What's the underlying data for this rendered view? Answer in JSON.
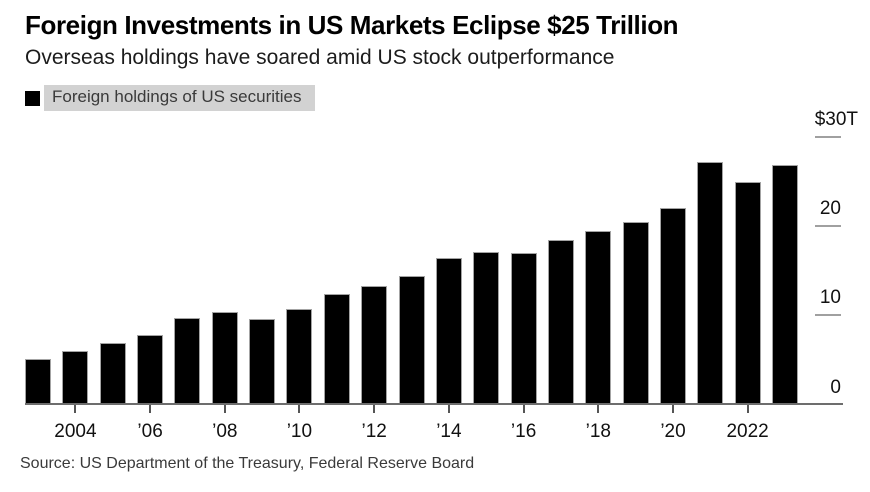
{
  "header": {
    "title": "Foreign Investments in US Markets Eclipse $25 Trillion",
    "subtitle": "Overseas holdings have soared amid US stock outperformance"
  },
  "legend": {
    "swatch_color": "#000000",
    "label": "Foreign holdings of US securities"
  },
  "chart_data": {
    "type": "bar",
    "title": "Foreign Investments in US Markets Eclipse $25 Trillion",
    "series_name": "Foreign holdings of US securities",
    "unit": "USD trillions",
    "categories": [
      "2003",
      "2004",
      "2005",
      "2006",
      "2007",
      "2008",
      "2009",
      "2010",
      "2011",
      "2012",
      "2013",
      "2014",
      "2015",
      "2016",
      "2017",
      "2018",
      "2019",
      "2020",
      "2021",
      "2022",
      "2023"
    ],
    "values": [
      5.0,
      6.0,
      6.9,
      7.8,
      9.7,
      10.3,
      9.6,
      10.7,
      12.4,
      13.3,
      14.4,
      16.4,
      17.1,
      17.0,
      18.4,
      19.4,
      20.5,
      22.0,
      27.2,
      24.9,
      26.9
    ],
    "ylim": [
      0,
      30
    ],
    "yticks": [
      0,
      10,
      20,
      30
    ],
    "ytick_labels": [
      "0",
      "10",
      "20",
      "$30T"
    ],
    "xtick_category_indexes": [
      1,
      3,
      5,
      7,
      9,
      11,
      13,
      15,
      17,
      19
    ],
    "xtick_labels": [
      "2004",
      "’06",
      "’08",
      "’10",
      "’12",
      "’14",
      "’16",
      "’18",
      "’20",
      "2022"
    ],
    "bar_color": "#000000",
    "axis_side": "right",
    "grid": "off",
    "legend_position": "top-left"
  },
  "footer": {
    "source": "Source: US Department of the Treasury, Federal Reserve Board"
  }
}
